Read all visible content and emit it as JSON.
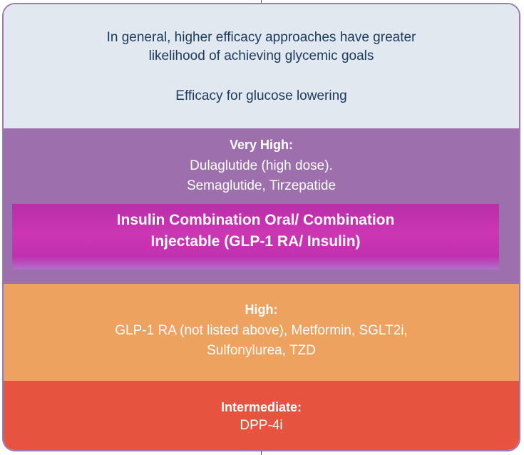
{
  "intro": {
    "statement_line1": "In general, higher efficacy approaches have greater",
    "statement_line2": "likelihood of achieving glycemic goals",
    "efficacy_label": "Efficacy for glucose lowering"
  },
  "tiers": {
    "very_high": {
      "heading": "Very High:",
      "drugs_line1": "Dulaglutide (high dose).",
      "drugs_line2": "Semaglutide, Tirzepatide",
      "combination_line1": "Insulin Combination Oral/ Combination",
      "combination_line2": "Injectable (GLP-1 RA/ Insulin)"
    },
    "high": {
      "heading": "High:",
      "drugs_line1": "GLP-1 RA (not listed above), Metformin, SGLT2i,",
      "drugs_line2": "Sulfonylurea, TZD"
    },
    "intermediate": {
      "heading": "Intermediate:",
      "drugs_line1": "DPP-4i"
    }
  },
  "colors": {
    "intro_bg": "#e2e8f0",
    "very_high_bg": "#9d6fad",
    "combination_bg": "#c030b0",
    "high_bg": "#eda25f",
    "intermediate_bg": "#e6533f",
    "frame_border": "#a078b4"
  }
}
